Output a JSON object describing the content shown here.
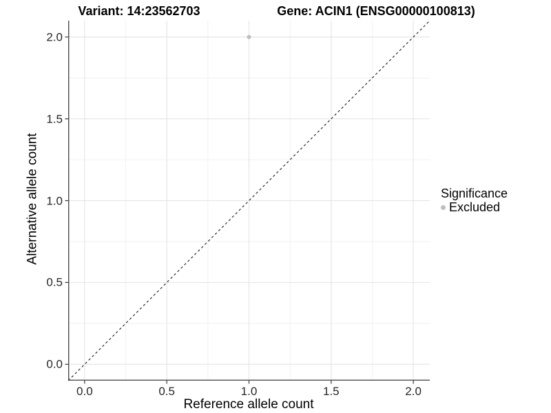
{
  "chart_data": {
    "type": "scatter",
    "title_variant": "Variant: 14:23562703",
    "title_gene": "Gene: ACIN1 (ENSG00000100813)",
    "xlabel": "Reference allele count",
    "ylabel": "Alternative allele count",
    "xlim": [
      -0.1,
      2.1
    ],
    "ylim": [
      -0.1,
      2.1
    ],
    "x_tick_values": [
      0,
      0.5,
      1,
      1.5,
      2
    ],
    "x_tick_labels": [
      "0.0",
      "0.5",
      "1.0",
      "1.5",
      "2.0"
    ],
    "y_tick_values": [
      0,
      0.5,
      1,
      1.5,
      2
    ],
    "y_tick_labels": [
      "0.0",
      "0.5",
      "1.0",
      "1.5",
      "2.0"
    ],
    "grid": "major and minor gridlines on white background",
    "points": [
      {
        "x": 1.0,
        "y": 2.0,
        "series": "Excluded"
      }
    ],
    "reference_line": {
      "style": "dashed",
      "x1": -0.1,
      "y1": -0.1,
      "x2": 2.1,
      "y2": 2.1,
      "meaning": "identity line y = x"
    },
    "legend": {
      "position": "right",
      "title": "Significance",
      "entries": [
        {
          "label": "Excluded",
          "color": "#bebebe",
          "marker": "circle"
        }
      ]
    },
    "colors": {
      "point": "#bebebe",
      "grid_major": "#e3e3e3",
      "grid_minor": "#f0f0f0",
      "axis_line": "#4d4d4d",
      "tick_mark": "#333333",
      "dashed_line": "#1a1a1a",
      "background": "#ffffff",
      "text": "#000000"
    }
  }
}
